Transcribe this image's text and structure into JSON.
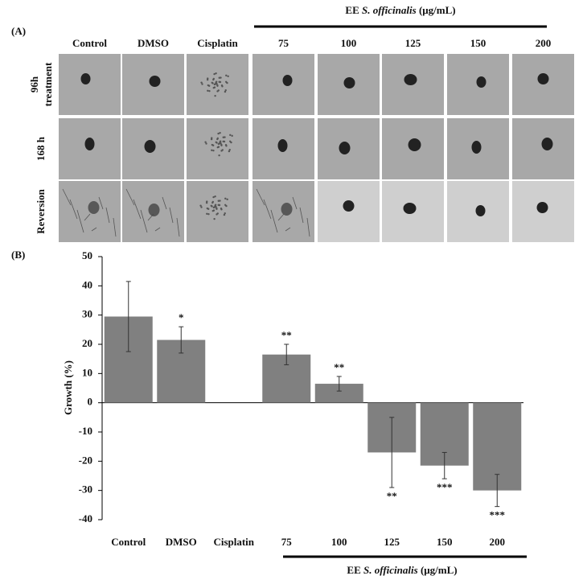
{
  "panel_a": {
    "label": "(A)",
    "group_label": {
      "prefix": "EE",
      "species": "S. officinalis",
      "unit": "(μg/mL)"
    },
    "columns": [
      "Control",
      "DMSO",
      "Cisplatin",
      "75",
      "100",
      "125",
      "150",
      "200"
    ],
    "rows": [
      [
        "96h",
        "treatment"
      ],
      [
        "168 h"
      ],
      [
        "Reversion"
      ]
    ]
  },
  "chart_data": {
    "type": "bar",
    "panel_label": "(B)",
    "y_label": "Growth (%)",
    "categories": [
      "Control",
      "DMSO",
      "Cisplatin",
      "75",
      "100",
      "125",
      "150",
      "200"
    ],
    "values": [
      29.5,
      21.5,
      null,
      16.5,
      6.5,
      -17,
      -21.5,
      -30
    ],
    "errors": [
      12,
      4.5,
      null,
      3.5,
      2.5,
      12,
      4.5,
      5.5
    ],
    "annotations": [
      null,
      "*",
      null,
      "**",
      "**",
      "**",
      "***",
      "***"
    ],
    "color": "#808080",
    "ylim": [
      -40,
      50
    ],
    "yticks": [
      -40,
      -30,
      -20,
      -10,
      0,
      10,
      20,
      30,
      40,
      50
    ],
    "group_label": {
      "prefix": "EE",
      "species": "S. officinalis",
      "unit": "(μg/mL)"
    }
  }
}
